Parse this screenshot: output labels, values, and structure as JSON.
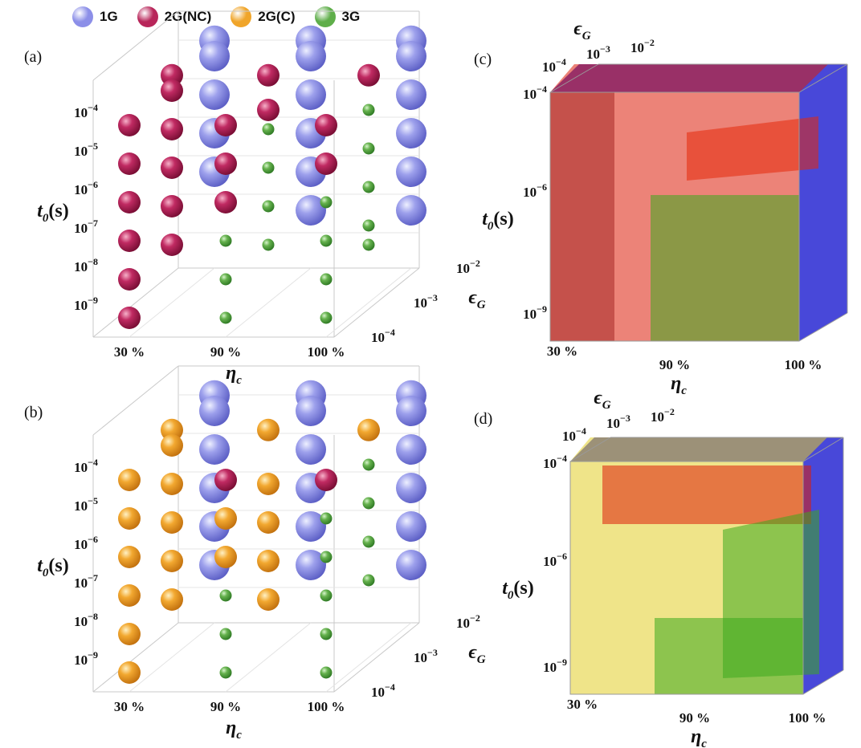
{
  "legend": [
    {
      "name": "1G",
      "color": "#8c8fe8"
    },
    {
      "name": "2G(NC)",
      "color": "#b8265a"
    },
    {
      "name": "2G(C)",
      "color": "#f0a52a"
    },
    {
      "name": "3G",
      "color": "#5fae4a"
    }
  ],
  "chart_data": [
    {
      "panel": "(a)",
      "type": "scatter",
      "x_axis": {
        "label": "η_c",
        "ticks": [
          "30%",
          "90%",
          "100%"
        ]
      },
      "y_axis": {
        "label": "t_0(s)",
        "ticks": [
          "10^-9",
          "10^-8",
          "10^-7",
          "10^-6",
          "10^-5",
          "10^-4"
        ]
      },
      "z_axis": {
        "label": "ϵ_G",
        "ticks": [
          "10^-4",
          "10^-3",
          "10^-2"
        ]
      },
      "series": [
        {
          "name": "1G",
          "points": [
            {
              "eta": "30%",
              "eps": "10^-2",
              "t0": "10^-3.6"
            },
            {
              "eta": "30%",
              "eps": "10^-2",
              "t0": "10^-4"
            },
            {
              "eta": "30%",
              "eps": "10^-2",
              "t0": "10^-5"
            },
            {
              "eta": "30%",
              "eps": "10^-2",
              "t0": "10^-6"
            },
            {
              "eta": "30%",
              "eps": "10^-2",
              "t0": "10^-7"
            },
            {
              "eta": "90%",
              "eps": "10^-2",
              "t0": "10^-3.6"
            },
            {
              "eta": "90%",
              "eps": "10^-2",
              "t0": "10^-4"
            },
            {
              "eta": "90%",
              "eps": "10^-2",
              "t0": "10^-5"
            },
            {
              "eta": "90%",
              "eps": "10^-2",
              "t0": "10^-6"
            },
            {
              "eta": "90%",
              "eps": "10^-2",
              "t0": "10^-7"
            },
            {
              "eta": "90%",
              "eps": "10^-2",
              "t0": "10^-8"
            },
            {
              "eta": "100%",
              "eps": "10^-2",
              "t0": "10^-3.6"
            },
            {
              "eta": "100%",
              "eps": "10^-2",
              "t0": "10^-4"
            },
            {
              "eta": "100%",
              "eps": "10^-2",
              "t0": "10^-5"
            },
            {
              "eta": "100%",
              "eps": "10^-2",
              "t0": "10^-6"
            },
            {
              "eta": "100%",
              "eps": "10^-2",
              "t0": "10^-7"
            },
            {
              "eta": "100%",
              "eps": "10^-2",
              "t0": "10^-8"
            }
          ]
        },
        {
          "name": "2G(NC)",
          "points": [
            {
              "eta": "30%",
              "eps": "10^-4",
              "t0": "10^-4"
            },
            {
              "eta": "30%",
              "eps": "10^-4",
              "t0": "10^-5"
            },
            {
              "eta": "30%",
              "eps": "10^-4",
              "t0": "10^-6"
            },
            {
              "eta": "30%",
              "eps": "10^-4",
              "t0": "10^-7"
            },
            {
              "eta": "30%",
              "eps": "10^-4",
              "t0": "10^-8"
            },
            {
              "eta": "30%",
              "eps": "10^-4",
              "t0": "10^-9"
            },
            {
              "eta": "30%",
              "eps": "10^-3",
              "t0": "10^-3.6"
            },
            {
              "eta": "30%",
              "eps": "10^-3",
              "t0": "10^-4"
            },
            {
              "eta": "30%",
              "eps": "10^-3",
              "t0": "10^-5"
            },
            {
              "eta": "30%",
              "eps": "10^-3",
              "t0": "10^-6"
            },
            {
              "eta": "30%",
              "eps": "10^-3",
              "t0": "10^-7"
            },
            {
              "eta": "30%",
              "eps": "10^-3",
              "t0": "10^-8"
            },
            {
              "eta": "90%",
              "eps": "10^-4",
              "t0": "10^-4"
            },
            {
              "eta": "90%",
              "eps": "10^-4",
              "t0": "10^-5"
            },
            {
              "eta": "90%",
              "eps": "10^-4",
              "t0": "10^-6"
            },
            {
              "eta": "90%",
              "eps": "10^-3",
              "t0": "10^-3.6"
            },
            {
              "eta": "90%",
              "eps": "10^-3",
              "t0": "10^-4.5"
            },
            {
              "eta": "100%",
              "eps": "10^-4",
              "t0": "10^-4"
            },
            {
              "eta": "100%",
              "eps": "10^-4",
              "t0": "10^-5"
            },
            {
              "eta": "100%",
              "eps": "10^-3",
              "t0": "10^-3.6"
            }
          ]
        },
        {
          "name": "3G",
          "points": [
            {
              "eta": "90%",
              "eps": "10^-4",
              "t0": "10^-7"
            },
            {
              "eta": "90%",
              "eps": "10^-4",
              "t0": "10^-8"
            },
            {
              "eta": "90%",
              "eps": "10^-4",
              "t0": "10^-9"
            },
            {
              "eta": "90%",
              "eps": "10^-3",
              "t0": "10^-5"
            },
            {
              "eta": "90%",
              "eps": "10^-3",
              "t0": "10^-6"
            },
            {
              "eta": "90%",
              "eps": "10^-3",
              "t0": "10^-7"
            },
            {
              "eta": "90%",
              "eps": "10^-3",
              "t0": "10^-8"
            },
            {
              "eta": "100%",
              "eps": "10^-4",
              "t0": "10^-6"
            },
            {
              "eta": "100%",
              "eps": "10^-4",
              "t0": "10^-7"
            },
            {
              "eta": "100%",
              "eps": "10^-4",
              "t0": "10^-8"
            },
            {
              "eta": "100%",
              "eps": "10^-4",
              "t0": "10^-9"
            },
            {
              "eta": "100%",
              "eps": "10^-3",
              "t0": "10^-4.5"
            },
            {
              "eta": "100%",
              "eps": "10^-3",
              "t0": "10^-5.5"
            },
            {
              "eta": "100%",
              "eps": "10^-3",
              "t0": "10^-6.5"
            },
            {
              "eta": "100%",
              "eps": "10^-3",
              "t0": "10^-7.5"
            },
            {
              "eta": "100%",
              "eps": "10^-3",
              "t0": "10^-8"
            }
          ]
        }
      ]
    },
    {
      "panel": "(b)",
      "type": "scatter",
      "x_axis": {
        "label": "η_c",
        "ticks": [
          "30%",
          "90%",
          "100%"
        ]
      },
      "y_axis": {
        "label": "t_0(s)",
        "ticks": [
          "10^-9",
          "10^-8",
          "10^-7",
          "10^-6",
          "10^-5",
          "10^-4"
        ]
      },
      "z_axis": {
        "label": "ϵ_G",
        "ticks": [
          "10^-4",
          "10^-3",
          "10^-2"
        ]
      },
      "series": [
        {
          "name": "1G",
          "points": [
            {
              "eta": "30%",
              "eps": "10^-2",
              "t0": "10^-3.6"
            },
            {
              "eta": "30%",
              "eps": "10^-2",
              "t0": "10^-4"
            },
            {
              "eta": "30%",
              "eps": "10^-2",
              "t0": "10^-5"
            },
            {
              "eta": "30%",
              "eps": "10^-2",
              "t0": "10^-6"
            },
            {
              "eta": "30%",
              "eps": "10^-2",
              "t0": "10^-7"
            },
            {
              "eta": "30%",
              "eps": "10^-2",
              "t0": "10^-8"
            },
            {
              "eta": "90%",
              "eps": "10^-2",
              "t0": "10^-3.6"
            },
            {
              "eta": "90%",
              "eps": "10^-2",
              "t0": "10^-4"
            },
            {
              "eta": "90%",
              "eps": "10^-2",
              "t0": "10^-5"
            },
            {
              "eta": "90%",
              "eps": "10^-2",
              "t0": "10^-6"
            },
            {
              "eta": "90%",
              "eps": "10^-2",
              "t0": "10^-7"
            },
            {
              "eta": "90%",
              "eps": "10^-2",
              "t0": "10^-8"
            },
            {
              "eta": "100%",
              "eps": "10^-2",
              "t0": "10^-3.6"
            },
            {
              "eta": "100%",
              "eps": "10^-2",
              "t0": "10^-4"
            },
            {
              "eta": "100%",
              "eps": "10^-2",
              "t0": "10^-5"
            },
            {
              "eta": "100%",
              "eps": "10^-2",
              "t0": "10^-6"
            },
            {
              "eta": "100%",
              "eps": "10^-2",
              "t0": "10^-7"
            },
            {
              "eta": "100%",
              "eps": "10^-2",
              "t0": "10^-8"
            }
          ]
        },
        {
          "name": "2G(NC)",
          "points": [
            {
              "eta": "90%",
              "eps": "10^-4",
              "t0": "10^-4"
            },
            {
              "eta": "100%",
              "eps": "10^-4",
              "t0": "10^-4"
            }
          ]
        },
        {
          "name": "2G(C)",
          "points": [
            {
              "eta": "30%",
              "eps": "10^-4",
              "t0": "10^-4"
            },
            {
              "eta": "30%",
              "eps": "10^-4",
              "t0": "10^-5"
            },
            {
              "eta": "30%",
              "eps": "10^-4",
              "t0": "10^-6"
            },
            {
              "eta": "30%",
              "eps": "10^-4",
              "t0": "10^-7"
            },
            {
              "eta": "30%",
              "eps": "10^-4",
              "t0": "10^-8"
            },
            {
              "eta": "30%",
              "eps": "10^-4",
              "t0": "10^-9"
            },
            {
              "eta": "30%",
              "eps": "10^-3",
              "t0": "10^-3.6"
            },
            {
              "eta": "30%",
              "eps": "10^-3",
              "t0": "10^-4"
            },
            {
              "eta": "30%",
              "eps": "10^-3",
              "t0": "10^-5"
            },
            {
              "eta": "30%",
              "eps": "10^-3",
              "t0": "10^-6"
            },
            {
              "eta": "30%",
              "eps": "10^-3",
              "t0": "10^-7"
            },
            {
              "eta": "30%",
              "eps": "10^-3",
              "t0": "10^-8"
            },
            {
              "eta": "90%",
              "eps": "10^-4",
              "t0": "10^-5"
            },
            {
              "eta": "90%",
              "eps": "10^-4",
              "t0": "10^-6"
            },
            {
              "eta": "90%",
              "eps": "10^-3",
              "t0": "10^-3.6"
            },
            {
              "eta": "90%",
              "eps": "10^-3",
              "t0": "10^-5"
            },
            {
              "eta": "90%",
              "eps": "10^-3",
              "t0": "10^-6"
            },
            {
              "eta": "90%",
              "eps": "10^-3",
              "t0": "10^-7"
            },
            {
              "eta": "90%",
              "eps": "10^-3",
              "t0": "10^-8"
            },
            {
              "eta": "100%",
              "eps": "10^-3",
              "t0": "10^-3.6"
            }
          ]
        },
        {
          "name": "3G",
          "points": [
            {
              "eta": "90%",
              "eps": "10^-4",
              "t0": "10^-7"
            },
            {
              "eta": "90%",
              "eps": "10^-4",
              "t0": "10^-8"
            },
            {
              "eta": "90%",
              "eps": "10^-4",
              "t0": "10^-9"
            },
            {
              "eta": "100%",
              "eps": "10^-4",
              "t0": "10^-5"
            },
            {
              "eta": "100%",
              "eps": "10^-4",
              "t0": "10^-6"
            },
            {
              "eta": "100%",
              "eps": "10^-4",
              "t0": "10^-7"
            },
            {
              "eta": "100%",
              "eps": "10^-4",
              "t0": "10^-8"
            },
            {
              "eta": "100%",
              "eps": "10^-4",
              "t0": "10^-9"
            },
            {
              "eta": "100%",
              "eps": "10^-3",
              "t0": "10^-4.5"
            },
            {
              "eta": "100%",
              "eps": "10^-3",
              "t0": "10^-5.5"
            },
            {
              "eta": "100%",
              "eps": "10^-3",
              "t0": "10^-6.5"
            },
            {
              "eta": "100%",
              "eps": "10^-3",
              "t0": "10^-7.5"
            }
          ]
        }
      ]
    },
    {
      "panel": "(c)",
      "type": "region-3d",
      "x_axis": {
        "label": "η_c",
        "ticks": [
          "30%",
          "90%",
          "100%"
        ]
      },
      "y_axis": {
        "label": "t_0(s)",
        "ticks": [
          "10^-9",
          "10^-6",
          "10^-4"
        ]
      },
      "z_axis": {
        "label": "ϵ_G",
        "ticks": [
          "10^-4",
          "10^-3",
          "10^-2"
        ]
      },
      "regions": [
        "1G",
        "2G(NC)",
        "3G"
      ]
    },
    {
      "panel": "(d)",
      "type": "region-3d",
      "x_axis": {
        "label": "η_c",
        "ticks": [
          "30%",
          "90%",
          "100%"
        ]
      },
      "y_axis": {
        "label": "t_0(s)",
        "ticks": [
          "10^-9",
          "10^-6",
          "10^-4"
        ]
      },
      "z_axis": {
        "label": "ϵ_G",
        "ticks": [
          "10^-4",
          "10^-3",
          "10^-2"
        ]
      },
      "regions": [
        "1G",
        "2G(C)",
        "2G(NC)",
        "3G"
      ]
    }
  ]
}
